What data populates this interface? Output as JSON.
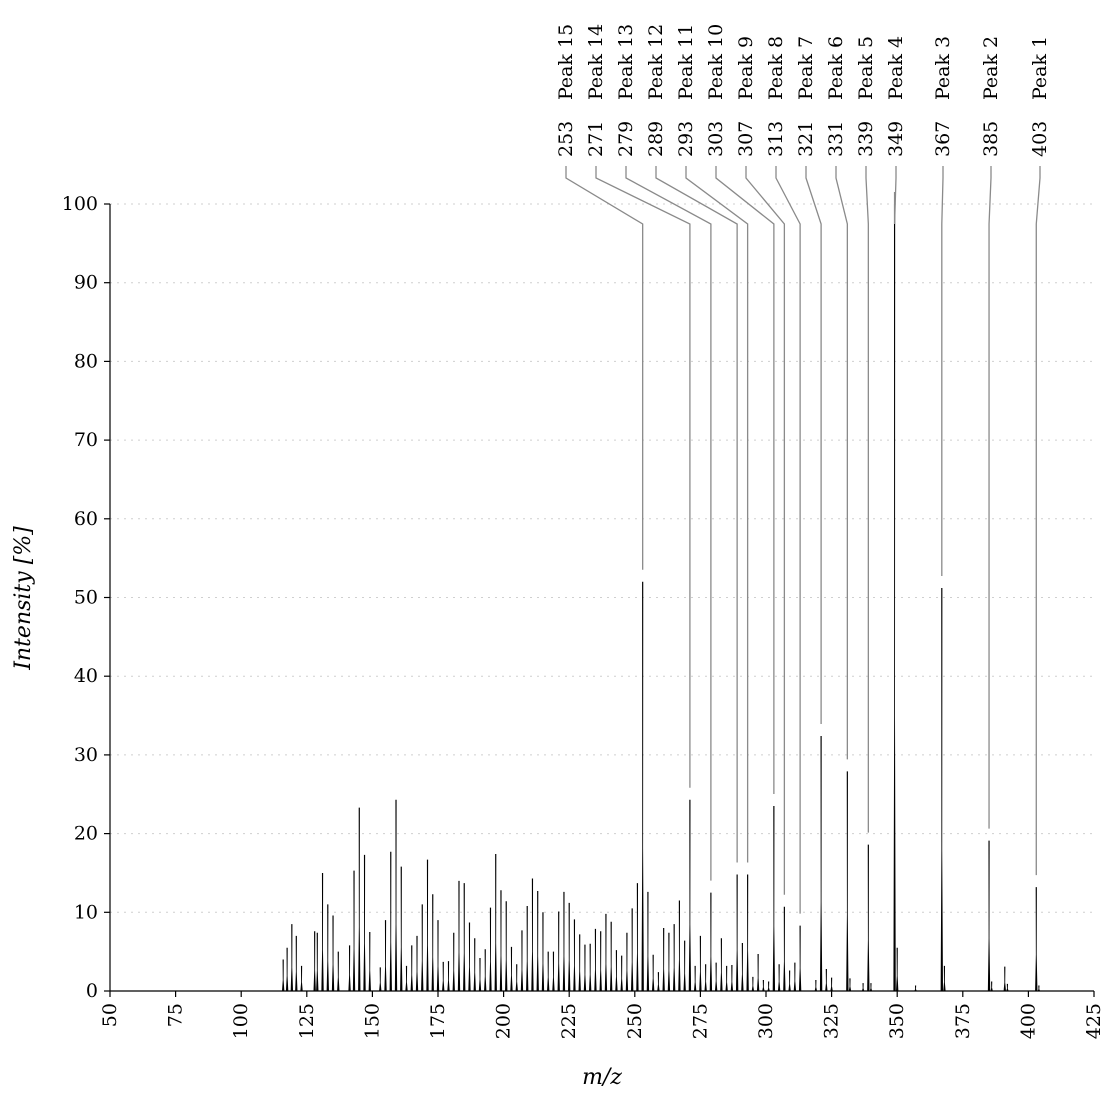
{
  "chart_data": {
    "type": "bar",
    "title": "",
    "xlabel": "m/z",
    "ylabel": "Intensity [%]",
    "xlim": [
      50,
      425
    ],
    "ylim": [
      0,
      100
    ],
    "x_ticks": [
      50,
      75,
      100,
      125,
      150,
      175,
      200,
      225,
      250,
      275,
      300,
      325,
      350,
      375,
      400,
      425
    ],
    "y_ticks": [
      0,
      10,
      20,
      30,
      40,
      50,
      60,
      70,
      80,
      90,
      100
    ],
    "grid": "horizontal dotted",
    "line_color": "#000000",
    "leader_color": "#8a8a8a",
    "peaks": [
      {
        "x": 116.0,
        "y": 4.0
      },
      {
        "x": 117.5,
        "y": 5.5
      },
      {
        "x": 119.3,
        "y": 8.5
      },
      {
        "x": 121.0,
        "y": 7.0
      },
      {
        "x": 123.0,
        "y": 3.2
      },
      {
        "x": 128.0,
        "y": 7.6
      },
      {
        "x": 129.0,
        "y": 7.4
      },
      {
        "x": 131.0,
        "y": 15.0
      },
      {
        "x": 133.0,
        "y": 11.0
      },
      {
        "x": 135.0,
        "y": 9.6
      },
      {
        "x": 137.0,
        "y": 5.0
      },
      {
        "x": 141.3,
        "y": 5.8
      },
      {
        "x": 143.0,
        "y": 15.3
      },
      {
        "x": 145.0,
        "y": 23.3
      },
      {
        "x": 147.0,
        "y": 17.3
      },
      {
        "x": 149.0,
        "y": 7.5
      },
      {
        "x": 153.0,
        "y": 3.0
      },
      {
        "x": 155.0,
        "y": 9.0
      },
      {
        "x": 157.0,
        "y": 17.7
      },
      {
        "x": 159.0,
        "y": 24.3
      },
      {
        "x": 161.0,
        "y": 15.8
      },
      {
        "x": 163.0,
        "y": 3.2
      },
      {
        "x": 165.0,
        "y": 5.8
      },
      {
        "x": 167.0,
        "y": 7.0
      },
      {
        "x": 169.0,
        "y": 11.0
      },
      {
        "x": 171.0,
        "y": 16.7
      },
      {
        "x": 173.0,
        "y": 12.3
      },
      {
        "x": 175.0,
        "y": 9.0
      },
      {
        "x": 177.0,
        "y": 3.7
      },
      {
        "x": 179.0,
        "y": 3.8
      },
      {
        "x": 181.0,
        "y": 7.4
      },
      {
        "x": 183.0,
        "y": 14.0
      },
      {
        "x": 185.0,
        "y": 13.7
      },
      {
        "x": 187.0,
        "y": 8.7
      },
      {
        "x": 189.0,
        "y": 6.7
      },
      {
        "x": 191.0,
        "y": 4.2
      },
      {
        "x": 193.0,
        "y": 5.3
      },
      {
        "x": 195.0,
        "y": 10.6
      },
      {
        "x": 197.0,
        "y": 17.4
      },
      {
        "x": 199.0,
        "y": 12.8
      },
      {
        "x": 201.0,
        "y": 11.4
      },
      {
        "x": 203.0,
        "y": 5.6
      },
      {
        "x": 205.0,
        "y": 3.4
      },
      {
        "x": 207.0,
        "y": 7.7
      },
      {
        "x": 209.0,
        "y": 10.8
      },
      {
        "x": 211.0,
        "y": 14.3
      },
      {
        "x": 213.0,
        "y": 12.7
      },
      {
        "x": 215.0,
        "y": 10.0
      },
      {
        "x": 217.0,
        "y": 5.0
      },
      {
        "x": 219.0,
        "y": 5.0
      },
      {
        "x": 221.0,
        "y": 10.1
      },
      {
        "x": 223.0,
        "y": 12.6
      },
      {
        "x": 225.0,
        "y": 11.2
      },
      {
        "x": 227.0,
        "y": 9.1
      },
      {
        "x": 229.0,
        "y": 7.2
      },
      {
        "x": 231.0,
        "y": 5.9
      },
      {
        "x": 233.0,
        "y": 6.0
      },
      {
        "x": 235.0,
        "y": 7.9
      },
      {
        "x": 237.0,
        "y": 7.6
      },
      {
        "x": 239.0,
        "y": 9.8
      },
      {
        "x": 241.0,
        "y": 8.8
      },
      {
        "x": 243.0,
        "y": 5.2
      },
      {
        "x": 245.0,
        "y": 4.5
      },
      {
        "x": 247.0,
        "y": 7.4
      },
      {
        "x": 249.0,
        "y": 10.5
      },
      {
        "x": 251.0,
        "y": 13.7
      },
      {
        "x": 253.0,
        "y": 52.0
      },
      {
        "x": 255.0,
        "y": 12.6
      },
      {
        "x": 257.0,
        "y": 4.6
      },
      {
        "x": 259.0,
        "y": 2.4
      },
      {
        "x": 261.0,
        "y": 8.0
      },
      {
        "x": 263.0,
        "y": 7.4
      },
      {
        "x": 265.0,
        "y": 8.5
      },
      {
        "x": 267.0,
        "y": 11.5
      },
      {
        "x": 269.0,
        "y": 6.4
      },
      {
        "x": 271.0,
        "y": 24.3
      },
      {
        "x": 273.0,
        "y": 3.2
      },
      {
        "x": 275.0,
        "y": 7.0
      },
      {
        "x": 277.0,
        "y": 3.4
      },
      {
        "x": 279.0,
        "y": 12.5
      },
      {
        "x": 281.0,
        "y": 3.6
      },
      {
        "x": 283.0,
        "y": 6.7
      },
      {
        "x": 285.0,
        "y": 3.2
      },
      {
        "x": 287.0,
        "y": 3.3
      },
      {
        "x": 289.0,
        "y": 14.8
      },
      {
        "x": 291.0,
        "y": 6.1
      },
      {
        "x": 293.0,
        "y": 14.8
      },
      {
        "x": 295.0,
        "y": 1.8
      },
      {
        "x": 297.0,
        "y": 4.7
      },
      {
        "x": 299.0,
        "y": 1.4
      },
      {
        "x": 301.0,
        "y": 1.2
      },
      {
        "x": 303.0,
        "y": 23.5
      },
      {
        "x": 305.0,
        "y": 3.4
      },
      {
        "x": 307.0,
        "y": 10.7
      },
      {
        "x": 309.0,
        "y": 2.6
      },
      {
        "x": 311.0,
        "y": 3.6
      },
      {
        "x": 313.0,
        "y": 8.3
      },
      {
        "x": 319.0,
        "y": 1.4
      },
      {
        "x": 321.0,
        "y": 32.4
      },
      {
        "x": 323.0,
        "y": 2.8
      },
      {
        "x": 325.0,
        "y": 1.7
      },
      {
        "x": 331.0,
        "y": 27.9
      },
      {
        "x": 332.0,
        "y": 1.6
      },
      {
        "x": 337.0,
        "y": 1.0
      },
      {
        "x": 339.0,
        "y": 18.6
      },
      {
        "x": 340.0,
        "y": 1.0
      },
      {
        "x": 349.0,
        "y": 100.0
      },
      {
        "x": 350.0,
        "y": 5.5
      },
      {
        "x": 357.0,
        "y": 0.7
      },
      {
        "x": 367.0,
        "y": 51.2
      },
      {
        "x": 368.0,
        "y": 3.2
      },
      {
        "x": 385.0,
        "y": 19.1
      },
      {
        "x": 386.0,
        "y": 1.2
      },
      {
        "x": 391.0,
        "y": 3.1
      },
      {
        "x": 392.0,
        "y": 0.9
      },
      {
        "x": 403.0,
        "y": 13.2
      },
      {
        "x": 404.0,
        "y": 0.7
      }
    ],
    "annotations": [
      {
        "name": "Peak 1",
        "mz": "403",
        "x": 403,
        "y": 13.2
      },
      {
        "name": "Peak 2",
        "mz": "385",
        "x": 385,
        "y": 19.1
      },
      {
        "name": "Peak 3",
        "mz": "367",
        "x": 367,
        "y": 51.2
      },
      {
        "name": "Peak 4",
        "mz": "349",
        "x": 349,
        "y": 100.0
      },
      {
        "name": "Peak 5",
        "mz": "339",
        "x": 339,
        "y": 18.6
      },
      {
        "name": "Peak 6",
        "mz": "331",
        "x": 331,
        "y": 27.9
      },
      {
        "name": "Peak 7",
        "mz": "321",
        "x": 321,
        "y": 32.4
      },
      {
        "name": "Peak 8",
        "mz": "313",
        "x": 313,
        "y": 8.3
      },
      {
        "name": "Peak 9",
        "mz": "307",
        "x": 307,
        "y": 10.7
      },
      {
        "name": "Peak 10",
        "mz": "303",
        "x": 303,
        "y": 23.5
      },
      {
        "name": "Peak 11",
        "mz": "293",
        "x": 293,
        "y": 14.8
      },
      {
        "name": "Peak 12",
        "mz": "289",
        "x": 289,
        "y": 14.8
      },
      {
        "name": "Peak 13",
        "mz": "279",
        "x": 279,
        "y": 12.5
      },
      {
        "name": "Peak 14",
        "mz": "271",
        "x": 271,
        "y": 24.3
      },
      {
        "name": "Peak 15",
        "mz": "253",
        "x": 253,
        "y": 52.0
      }
    ]
  }
}
